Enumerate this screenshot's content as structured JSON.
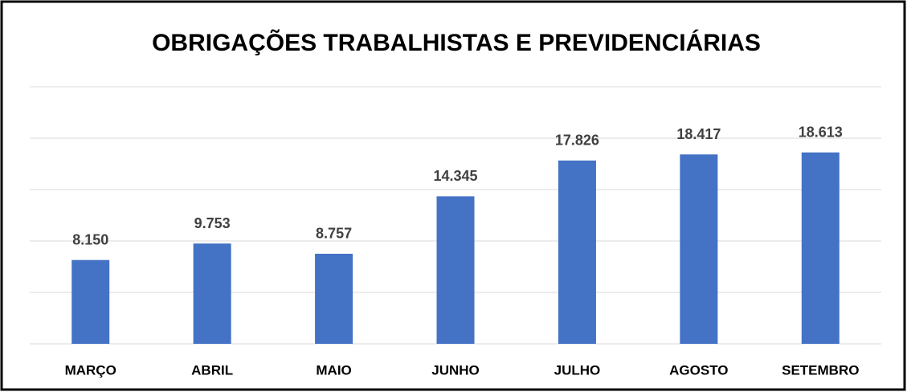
{
  "chart_data": {
    "type": "bar",
    "title": "OBRIGAÇÕES TRABALHISTAS E PREVIDENCIÁRIAS",
    "categories": [
      "MARÇO",
      "ABRIL",
      "MAIO",
      "JUNHO",
      "JULHO",
      "AGOSTO",
      "SETEMBRO"
    ],
    "values": [
      8150,
      9753,
      8757,
      14345,
      17826,
      18417,
      18613
    ],
    "value_labels": [
      "8.150",
      "9.753",
      "8.757",
      "14.345",
      "17.826",
      "18.417",
      "18.613"
    ],
    "color": "#4472c4",
    "ylim": [
      0,
      25000
    ],
    "yticks": [
      0,
      5000,
      10000,
      15000,
      20000,
      25000
    ],
    "grid": true
  }
}
